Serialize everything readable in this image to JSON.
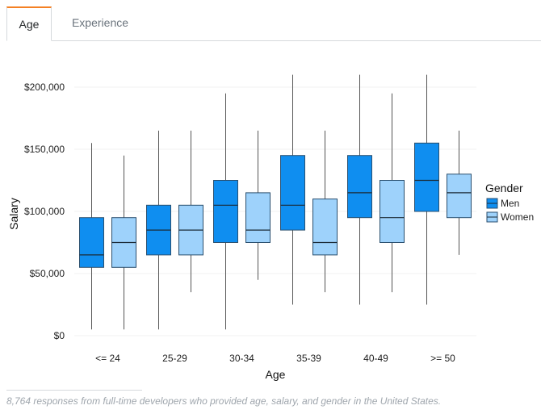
{
  "tabs": [
    {
      "label": "Age",
      "active": true
    },
    {
      "label": "Experience",
      "active": false
    }
  ],
  "footnote": "8,764 responses from full-time developers who provided age, salary, and gender in the United States.",
  "colors": {
    "men": "#0f8ef0",
    "women": "#9ed2fb",
    "stroke": "#2a4f6f",
    "whisker": "#555555",
    "grid": "#f0f0f0",
    "tab_accent": "#f48024"
  },
  "chart_data": {
    "type": "boxplot",
    "title": "",
    "xlabel": "Age",
    "ylabel": "Salary",
    "ylim": [
      0,
      210000
    ],
    "yticks": [
      0,
      50000,
      100000,
      150000,
      200000
    ],
    "ytick_labels": [
      "$0",
      "$50,000",
      "$100,000",
      "$150,000",
      "$200,000"
    ],
    "categories": [
      "<= 24",
      "25-29",
      "30-34",
      "35-39",
      "40-49",
      ">= 50"
    ],
    "legend": {
      "title": "Gender",
      "position": "right"
    },
    "series": [
      {
        "name": "Men",
        "color": "#0f8ef0",
        "boxes": [
          {
            "min": 5000,
            "q1": 55000,
            "median": 65000,
            "q3": 95000,
            "max": 155000
          },
          {
            "min": 5000,
            "q1": 65000,
            "median": 85000,
            "q3": 105000,
            "max": 165000
          },
          {
            "min": 5000,
            "q1": 75000,
            "median": 105000,
            "q3": 125000,
            "max": 195000
          },
          {
            "min": 25000,
            "q1": 85000,
            "median": 105000,
            "q3": 145000,
            "max": 210000
          },
          {
            "min": 25000,
            "q1": 95000,
            "median": 115000,
            "q3": 145000,
            "max": 210000
          },
          {
            "min": 25000,
            "q1": 100000,
            "median": 125000,
            "q3": 155000,
            "max": 210000
          }
        ]
      },
      {
        "name": "Women",
        "color": "#9ed2fb",
        "boxes": [
          {
            "min": 5000,
            "q1": 55000,
            "median": 75000,
            "q3": 95000,
            "max": 145000
          },
          {
            "min": 35000,
            "q1": 65000,
            "median": 85000,
            "q3": 105000,
            "max": 165000
          },
          {
            "min": 45000,
            "q1": 75000,
            "median": 85000,
            "q3": 115000,
            "max": 165000
          },
          {
            "min": 35000,
            "q1": 65000,
            "median": 75000,
            "q3": 110000,
            "max": 165000
          },
          {
            "min": 35000,
            "q1": 75000,
            "median": 95000,
            "q3": 125000,
            "max": 195000
          },
          {
            "min": 65000,
            "q1": 95000,
            "median": 115000,
            "q3": 130000,
            "max": 165000
          }
        ]
      }
    ]
  }
}
